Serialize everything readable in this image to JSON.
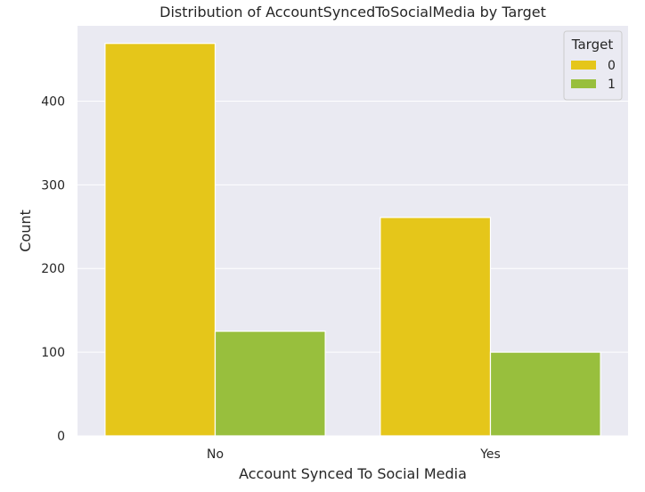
{
  "chart_data": {
    "type": "bar",
    "title": "Distribution of AccountSyncedToSocialMedia by Target",
    "xlabel": "Account Synced To Social Media",
    "ylabel": "Count",
    "categories": [
      "No",
      "Yes"
    ],
    "series": [
      {
        "name": "0",
        "values": [
          469,
          261
        ],
        "color": "#e5c61a"
      },
      {
        "name": "1",
        "values": [
          125,
          100
        ],
        "color": "#98bf3d"
      }
    ],
    "ylim": [
      0,
      490
    ],
    "yticks": [
      0,
      100,
      200,
      300,
      400
    ],
    "grid": true,
    "legend": {
      "title": "Target",
      "placement": "top-right"
    },
    "colors": {
      "plot_background": "#eaeaf2",
      "grid": "#ffffff"
    }
  }
}
